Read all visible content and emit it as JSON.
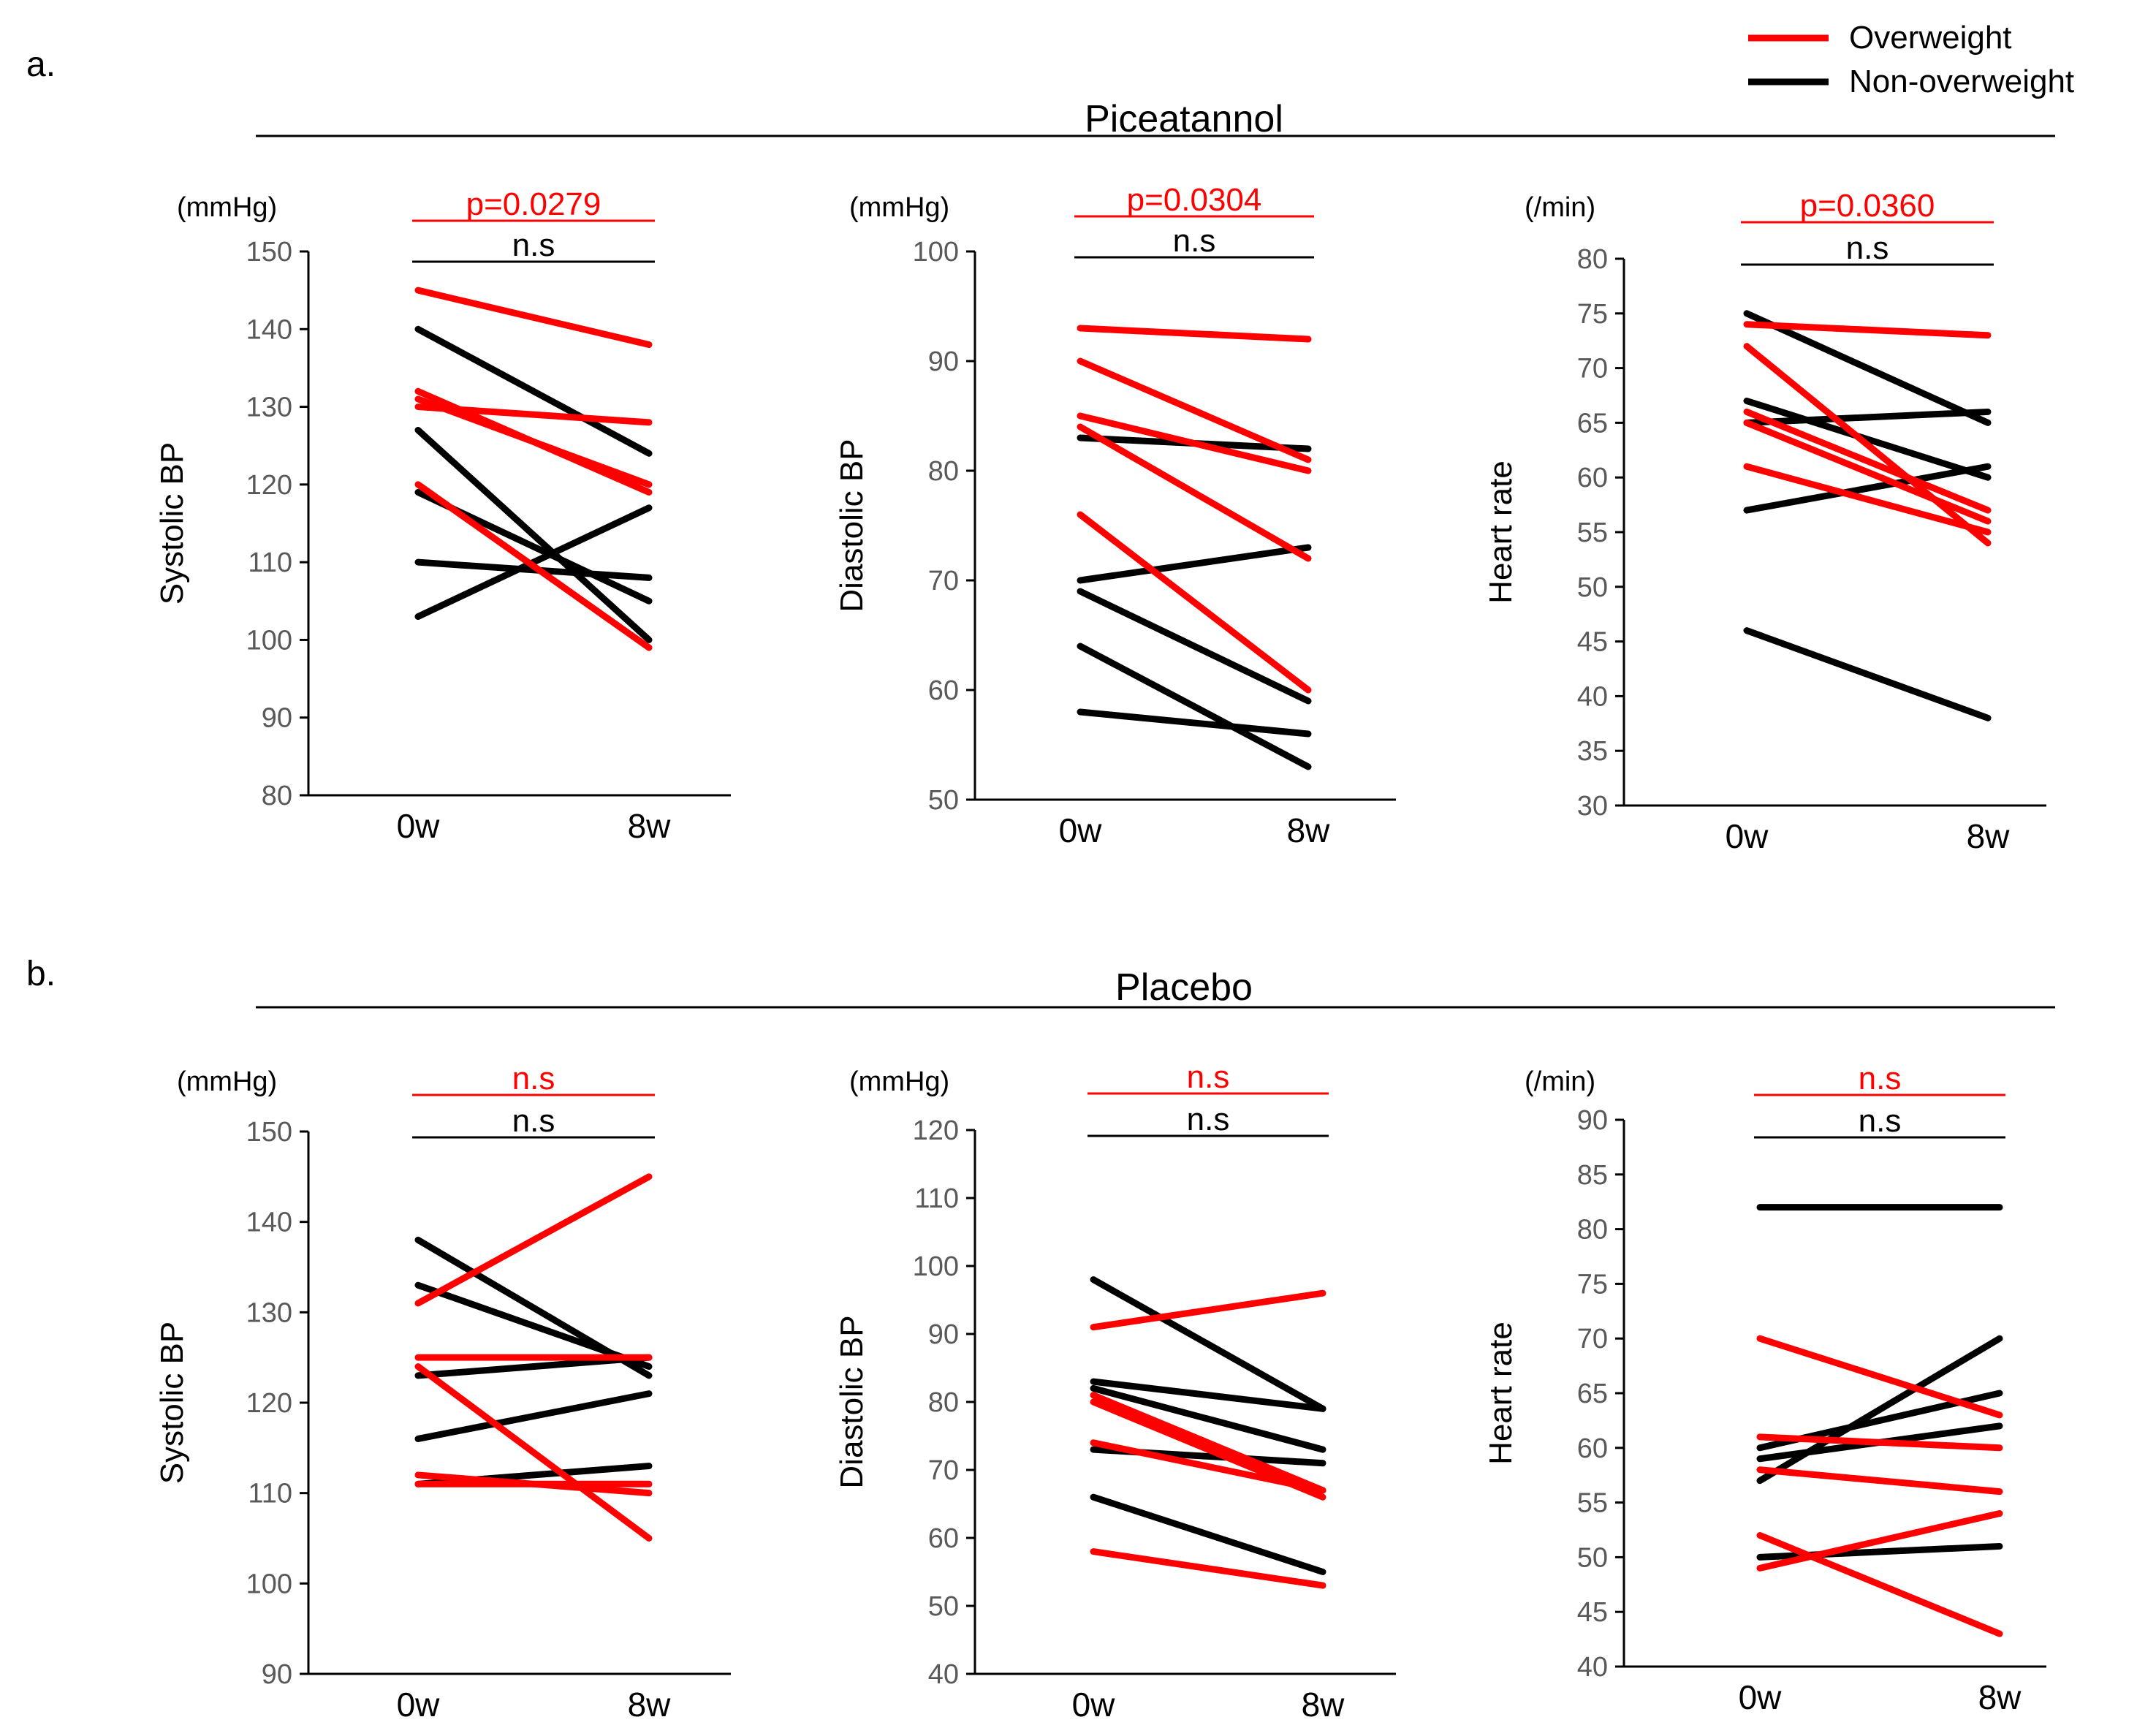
{
  "colors": {
    "overweight": "#ff0000",
    "non_overweight": "#000000",
    "tick": "#595959"
  },
  "legend": [
    {
      "key": "overweight",
      "label": "Overweight"
    },
    {
      "key": "non_overweight",
      "label": "Non-overweight"
    }
  ],
  "groups": [
    {
      "panel_label": "a.",
      "title": "Piceatannol"
    },
    {
      "panel_label": "b.",
      "title": "Placebo"
    }
  ],
  "chart_data": [
    {
      "type": "line",
      "group": "Piceatannol",
      "ylabel": "Systolic BP",
      "unit": "(mmHg)",
      "categories": [
        "0w",
        "8w"
      ],
      "ylim": [
        80,
        150
      ],
      "yticks": [
        80,
        90,
        100,
        110,
        120,
        130,
        140,
        150
      ],
      "annotations": {
        "overweight": "p=0.0279",
        "non_overweight": "n.s"
      },
      "series": [
        {
          "group": "overweight",
          "values": [
            145,
            138
          ]
        },
        {
          "group": "overweight",
          "values": [
            132,
            119
          ]
        },
        {
          "group": "overweight",
          "values": [
            131,
            120
          ]
        },
        {
          "group": "overweight",
          "values": [
            130,
            128
          ]
        },
        {
          "group": "overweight",
          "values": [
            120,
            99
          ]
        },
        {
          "group": "non_overweight",
          "values": [
            140,
            124
          ]
        },
        {
          "group": "non_overweight",
          "values": [
            127,
            100
          ]
        },
        {
          "group": "non_overweight",
          "values": [
            119,
            105
          ]
        },
        {
          "group": "non_overweight",
          "values": [
            110,
            108
          ]
        },
        {
          "group": "non_overweight",
          "values": [
            103,
            117
          ]
        }
      ]
    },
    {
      "type": "line",
      "group": "Piceatannol",
      "ylabel": "Diastolic BP",
      "unit": "(mmHg)",
      "categories": [
        "0w",
        "8w"
      ],
      "ylim": [
        50,
        100
      ],
      "yticks": [
        50,
        60,
        70,
        80,
        90,
        100
      ],
      "annotations": {
        "overweight": "p=0.0304",
        "non_overweight": "n.s"
      },
      "series": [
        {
          "group": "overweight",
          "values": [
            93,
            92
          ]
        },
        {
          "group": "overweight",
          "values": [
            90,
            81
          ]
        },
        {
          "group": "overweight",
          "values": [
            85,
            80
          ]
        },
        {
          "group": "overweight",
          "values": [
            84,
            72
          ]
        },
        {
          "group": "overweight",
          "values": [
            76,
            60
          ]
        },
        {
          "group": "non_overweight",
          "values": [
            83,
            82
          ]
        },
        {
          "group": "non_overweight",
          "values": [
            70,
            73
          ]
        },
        {
          "group": "non_overweight",
          "values": [
            69,
            59
          ]
        },
        {
          "group": "non_overweight",
          "values": [
            64,
            53
          ]
        },
        {
          "group": "non_overweight",
          "values": [
            58,
            56
          ]
        }
      ]
    },
    {
      "type": "line",
      "group": "Piceatannol",
      "ylabel": "Heart rate",
      "unit": "(/min)",
      "categories": [
        "0w",
        "8w"
      ],
      "ylim": [
        30,
        80
      ],
      "yticks": [
        30,
        35,
        40,
        45,
        50,
        55,
        60,
        65,
        70,
        75,
        80
      ],
      "annotations": {
        "overweight": "p=0.0360",
        "non_overweight": "n.s"
      },
      "series": [
        {
          "group": "overweight",
          "values": [
            74,
            73
          ]
        },
        {
          "group": "overweight",
          "values": [
            72,
            54
          ]
        },
        {
          "group": "overweight",
          "values": [
            66,
            57
          ]
        },
        {
          "group": "overweight",
          "values": [
            65,
            56
          ]
        },
        {
          "group": "overweight",
          "values": [
            61,
            55
          ]
        },
        {
          "group": "non_overweight",
          "values": [
            75,
            65
          ]
        },
        {
          "group": "non_overweight",
          "values": [
            67,
            60
          ]
        },
        {
          "group": "non_overweight",
          "values": [
            65,
            66
          ]
        },
        {
          "group": "non_overweight",
          "values": [
            57,
            61
          ]
        },
        {
          "group": "non_overweight",
          "values": [
            46,
            38
          ]
        }
      ]
    },
    {
      "type": "line",
      "group": "Placebo",
      "ylabel": "Systolic BP",
      "unit": "(mmHg)",
      "categories": [
        "0w",
        "8w"
      ],
      "ylim": [
        90,
        150
      ],
      "yticks": [
        90,
        100,
        110,
        120,
        130,
        140,
        150
      ],
      "annotations": {
        "overweight": "n.s",
        "non_overweight": "n.s"
      },
      "series": [
        {
          "group": "overweight",
          "values": [
            131,
            145
          ]
        },
        {
          "group": "overweight",
          "values": [
            125,
            125
          ]
        },
        {
          "group": "overweight",
          "values": [
            124,
            105
          ]
        },
        {
          "group": "overweight",
          "values": [
            112,
            110
          ]
        },
        {
          "group": "overweight",
          "values": [
            111,
            111
          ]
        },
        {
          "group": "non_overweight",
          "values": [
            138,
            123
          ]
        },
        {
          "group": "non_overweight",
          "values": [
            133,
            124
          ]
        },
        {
          "group": "non_overweight",
          "values": [
            123,
            125
          ]
        },
        {
          "group": "non_overweight",
          "values": [
            116,
            121
          ]
        },
        {
          "group": "non_overweight",
          "values": [
            111,
            113
          ]
        }
      ]
    },
    {
      "type": "line",
      "group": "Placebo",
      "ylabel": "Diastolic BP",
      "unit": "(mmHg)",
      "categories": [
        "0w",
        "8w"
      ],
      "ylim": [
        40,
        120
      ],
      "yticks": [
        40,
        50,
        60,
        70,
        80,
        90,
        100,
        110,
        120
      ],
      "annotations": {
        "overweight": "n.s",
        "non_overweight": "n.s"
      },
      "series": [
        {
          "group": "overweight",
          "values": [
            91,
            96
          ]
        },
        {
          "group": "overweight",
          "values": [
            81,
            67
          ]
        },
        {
          "group": "overweight",
          "values": [
            80,
            66
          ]
        },
        {
          "group": "overweight",
          "values": [
            74,
            67
          ]
        },
        {
          "group": "overweight",
          "values": [
            58,
            53
          ]
        },
        {
          "group": "non_overweight",
          "values": [
            98,
            79
          ]
        },
        {
          "group": "non_overweight",
          "values": [
            83,
            79
          ]
        },
        {
          "group": "non_overweight",
          "values": [
            82,
            73
          ]
        },
        {
          "group": "non_overweight",
          "values": [
            73,
            71
          ]
        },
        {
          "group": "non_overweight",
          "values": [
            66,
            55
          ]
        }
      ]
    },
    {
      "type": "line",
      "group": "Placebo",
      "ylabel": "Heart rate",
      "unit": "(/min)",
      "categories": [
        "0w",
        "8w"
      ],
      "ylim": [
        40,
        90
      ],
      "yticks": [
        40,
        45,
        50,
        55,
        60,
        65,
        70,
        75,
        80,
        85,
        90
      ],
      "annotations": {
        "overweight": "n.s",
        "non_overweight": "n.s"
      },
      "series": [
        {
          "group": "overweight",
          "values": [
            70,
            63
          ]
        },
        {
          "group": "overweight",
          "values": [
            61,
            60
          ]
        },
        {
          "group": "overweight",
          "values": [
            58,
            56
          ]
        },
        {
          "group": "overweight",
          "values": [
            52,
            43
          ]
        },
        {
          "group": "overweight",
          "values": [
            49,
            54
          ]
        },
        {
          "group": "non_overweight",
          "values": [
            82,
            82
          ]
        },
        {
          "group": "non_overweight",
          "values": [
            60,
            65
          ]
        },
        {
          "group": "non_overweight",
          "values": [
            59,
            62
          ]
        },
        {
          "group": "non_overweight",
          "values": [
            57,
            70
          ]
        },
        {
          "group": "non_overweight",
          "values": [
            50,
            51
          ]
        }
      ]
    }
  ]
}
